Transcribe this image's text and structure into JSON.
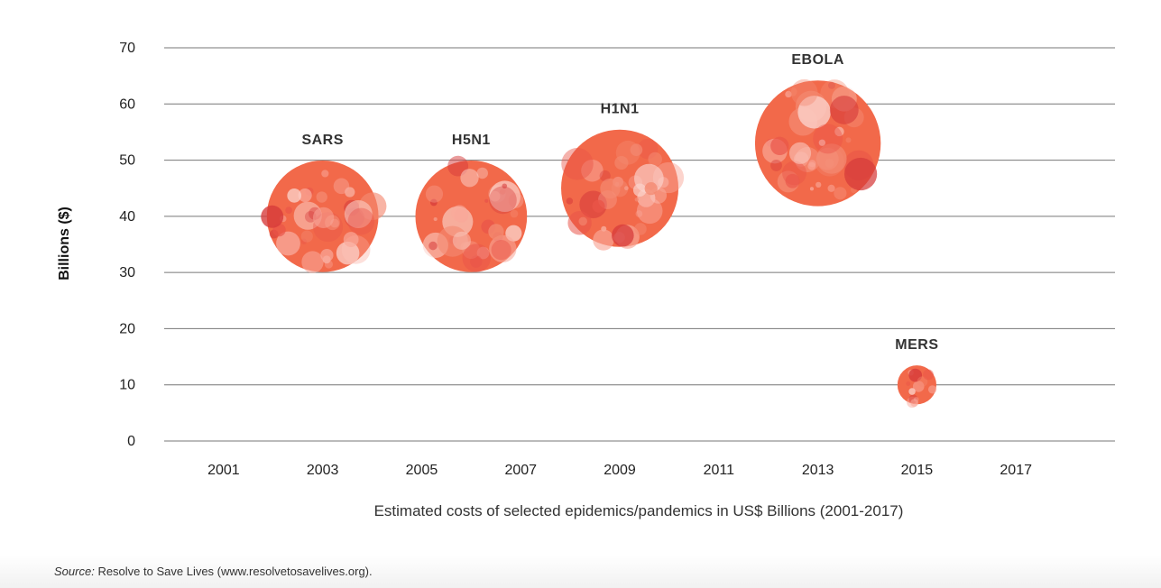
{
  "chart_data": {
    "type": "scatter",
    "title": "",
    "xlabel": "Estimated costs of selected epidemics/pandemics in US$ Billions (2001-2017)",
    "ylabel": "Billions ($)",
    "xlim": [
      1999.8,
      2019
    ],
    "ylim": [
      0,
      70
    ],
    "x_ticks": [
      "2001",
      "2003",
      "2005",
      "2007",
      "2009",
      "2011",
      "2013",
      "2015",
      "2017"
    ],
    "y_ticks": [
      "0",
      "10",
      "20",
      "30",
      "40",
      "50",
      "60",
      "70"
    ],
    "grid": true,
    "points": [
      {
        "label": "SARS",
        "x": 2003,
        "y": 40,
        "size": 40
      },
      {
        "label": "H5N1",
        "x": 2006,
        "y": 40,
        "size": 40
      },
      {
        "label": "H1N1",
        "x": 2009,
        "y": 45,
        "size": 45
      },
      {
        "label": "EBOLA",
        "x": 2013,
        "y": 53,
        "size": 53
      },
      {
        "label": "MERS",
        "x": 2015,
        "y": 10,
        "size": 2
      }
    ],
    "colors": {
      "bubble": "#f2694a",
      "bubble_light": "#f9a89a",
      "bubble_dark": "#d63a3a",
      "grid": "#777777"
    }
  },
  "source": {
    "label": "Source:",
    "text": "Resolve to Save Lives (www.resolvetosavelives.org)."
  }
}
